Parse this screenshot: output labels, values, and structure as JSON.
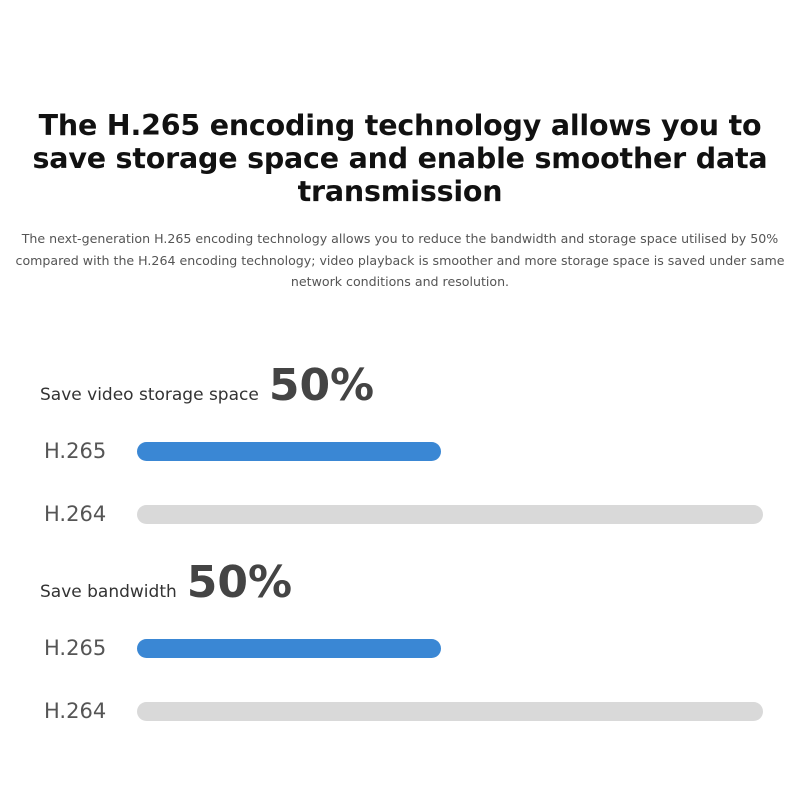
{
  "headline": "The H.265 encoding technology allows you to save storage space and enable smoother data transmission",
  "subtitle": "The next-generation H.265 encoding technology allows you to reduce the bandwidth and storage space utilised by 50% compared with the H.264 encoding technology; video playback is smoother and more storage space is saved under same network conditions and resolution.",
  "colors": {
    "h265_bar": "#3a87d4",
    "h264_bar": "#d9d9d9"
  },
  "sections": [
    {
      "label": "Save video storage space",
      "value": "50%",
      "rows": [
        {
          "codec": "H.265",
          "fraction": 0.485
        },
        {
          "codec": "H.264",
          "fraction": 1.0
        }
      ]
    },
    {
      "label": "Save bandwidth",
      "value": "50%",
      "rows": [
        {
          "codec": "H.265",
          "fraction": 0.485
        },
        {
          "codec": "H.264",
          "fraction": 1.0
        }
      ]
    }
  ]
}
